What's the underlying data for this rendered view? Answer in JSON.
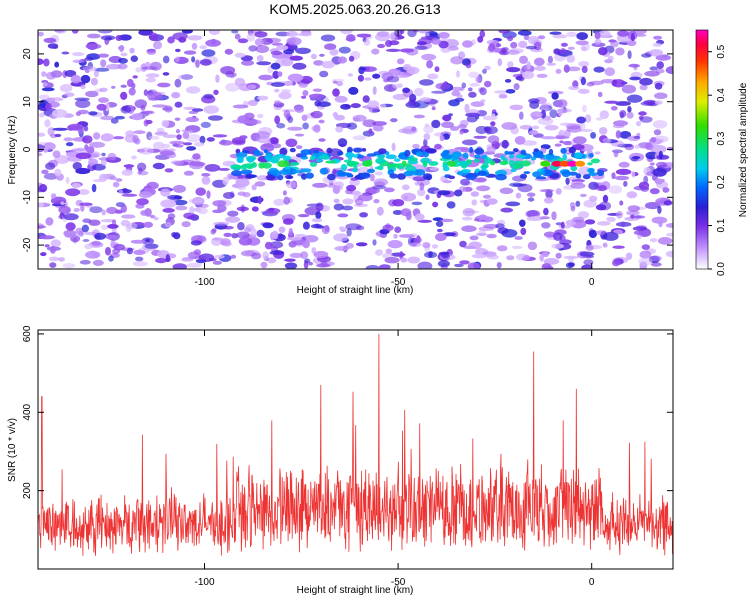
{
  "figure": {
    "title": "KOM5.2025.063.20.26.G13"
  },
  "chart_data": [
    {
      "type": "heatmap",
      "title": "KOM5.2025.063.20.26.G13",
      "xlabel": "Height of straight line (km)",
      "ylabel": "Frequency (Hz)",
      "xlim": [
        -143,
        21
      ],
      "ylim": [
        -25,
        25
      ],
      "x_ticks": [
        -100,
        -50,
        0
      ],
      "y_ticks": [
        -20,
        -10,
        0,
        10,
        20
      ],
      "colorbar": {
        "label": "Normalized spectral amplitude",
        "range": [
          0.0,
          0.55
        ],
        "ticks": [
          0.0,
          0.1,
          0.2,
          0.3,
          0.4,
          0.5
        ],
        "colormap": [
          "#ffffff",
          "#b060ff",
          "#5a1bd6",
          "#0044ff",
          "#00ccff",
          "#00e0a0",
          "#22dd00",
          "#ffee00",
          "#ff8800",
          "#ff0000",
          "#ff00aa"
        ]
      },
      "signal_band": {
        "frequency_hz": -3,
        "x_range": [
          -92,
          3
        ],
        "peak_x": [
          -8,
          -5
        ],
        "peak_value": 0.52
      }
    },
    {
      "type": "line",
      "xlabel": "Height of straight line (km)",
      "ylabel": "SNR (10 * v/v)",
      "xlim": [
        -143,
        21
      ],
      "ylim": [
        0,
        610
      ],
      "x_ticks": [
        -100,
        -50,
        0
      ],
      "y_ticks": [
        200,
        400,
        600
      ],
      "series": [
        {
          "color": "#ee3333",
          "baseline": 110,
          "notable_peaks": [
            [
              -55,
              600
            ],
            [
              -15,
              555
            ],
            [
              -142,
              440
            ],
            [
              -70,
              470
            ],
            [
              -4,
              460
            ]
          ]
        }
      ]
    }
  ]
}
